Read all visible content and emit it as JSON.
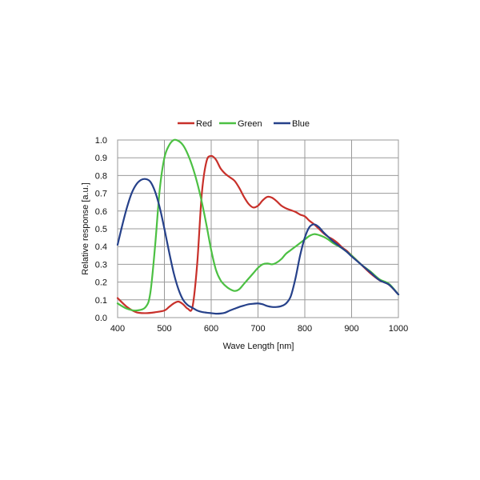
{
  "chart_data": {
    "type": "line",
    "title": "",
    "xlabel": "Wave Length [nm]",
    "ylabel": "Relative response [a.u.]",
    "xlim": [
      400,
      1000
    ],
    "ylim": [
      0,
      1
    ],
    "xticks": [
      "400",
      "500",
      "600",
      "700",
      "800",
      "900",
      "1000"
    ],
    "yticks": [
      "0.0",
      "0.1",
      "0.2",
      "0.3",
      "0.4",
      "0.5",
      "0.6",
      "0.7",
      "0.8",
      "0.9",
      "1.0"
    ],
    "grid": true,
    "legend_position": "top",
    "series": [
      {
        "name": "Red",
        "color": "#c8302a",
        "x": [
          400,
          420,
          440,
          460,
          480,
          500,
          510,
          520,
          530,
          540,
          550,
          560,
          570,
          580,
          590,
          600,
          610,
          620,
          630,
          640,
          650,
          660,
          670,
          680,
          690,
          700,
          710,
          720,
          730,
          740,
          750,
          760,
          770,
          780,
          790,
          800,
          810,
          820,
          830,
          840,
          850,
          860,
          870,
          880,
          890,
          900,
          920,
          940,
          960,
          980,
          1000
        ],
        "y": [
          0.11,
          0.06,
          0.03,
          0.025,
          0.03,
          0.04,
          0.06,
          0.08,
          0.09,
          0.075,
          0.05,
          0.06,
          0.3,
          0.7,
          0.88,
          0.91,
          0.89,
          0.84,
          0.81,
          0.79,
          0.77,
          0.73,
          0.68,
          0.64,
          0.62,
          0.63,
          0.66,
          0.68,
          0.675,
          0.655,
          0.63,
          0.615,
          0.605,
          0.595,
          0.58,
          0.57,
          0.545,
          0.525,
          0.5,
          0.475,
          0.455,
          0.44,
          0.42,
          0.395,
          0.375,
          0.35,
          0.3,
          0.25,
          0.21,
          0.185,
          0.13
        ]
      },
      {
        "name": "Green",
        "color": "#4cc043",
        "x": [
          400,
          420,
          440,
          460,
          470,
          480,
          490,
          500,
          510,
          520,
          530,
          540,
          550,
          560,
          570,
          580,
          590,
          600,
          610,
          620,
          630,
          640,
          650,
          660,
          670,
          680,
          690,
          700,
          710,
          720,
          730,
          740,
          750,
          760,
          770,
          780,
          790,
          800,
          810,
          820,
          830,
          840,
          850,
          860,
          870,
          880,
          890,
          900,
          920,
          940,
          960,
          980,
          1000
        ],
        "y": [
          0.08,
          0.05,
          0.04,
          0.06,
          0.14,
          0.4,
          0.72,
          0.9,
          0.97,
          1.0,
          0.995,
          0.97,
          0.92,
          0.85,
          0.76,
          0.65,
          0.52,
          0.38,
          0.27,
          0.21,
          0.18,
          0.16,
          0.15,
          0.16,
          0.19,
          0.22,
          0.25,
          0.28,
          0.3,
          0.305,
          0.3,
          0.31,
          0.33,
          0.36,
          0.38,
          0.4,
          0.42,
          0.44,
          0.46,
          0.47,
          0.465,
          0.455,
          0.44,
          0.42,
          0.405,
          0.39,
          0.37,
          0.35,
          0.3,
          0.26,
          0.215,
          0.19,
          0.13
        ]
      },
      {
        "name": "Blue",
        "color": "#26418a",
        "x": [
          400,
          410,
          420,
          430,
          440,
          450,
          460,
          470,
          480,
          490,
          500,
          510,
          520,
          530,
          540,
          550,
          560,
          570,
          580,
          590,
          600,
          610,
          620,
          630,
          640,
          650,
          660,
          670,
          680,
          690,
          700,
          710,
          720,
          730,
          740,
          750,
          760,
          770,
          780,
          790,
          800,
          810,
          820,
          830,
          840,
          850,
          860,
          870,
          880,
          890,
          900,
          920,
          940,
          960,
          980,
          1000
        ],
        "y": [
          0.41,
          0.52,
          0.62,
          0.7,
          0.75,
          0.775,
          0.78,
          0.765,
          0.71,
          0.62,
          0.5,
          0.37,
          0.25,
          0.16,
          0.1,
          0.07,
          0.055,
          0.04,
          0.032,
          0.028,
          0.025,
          0.022,
          0.023,
          0.028,
          0.04,
          0.05,
          0.06,
          0.068,
          0.075,
          0.078,
          0.08,
          0.075,
          0.065,
          0.06,
          0.06,
          0.065,
          0.08,
          0.12,
          0.22,
          0.35,
          0.45,
          0.51,
          0.525,
          0.51,
          0.48,
          0.455,
          0.43,
          0.41,
          0.39,
          0.37,
          0.345,
          0.3,
          0.255,
          0.21,
          0.185,
          0.13
        ]
      }
    ]
  }
}
